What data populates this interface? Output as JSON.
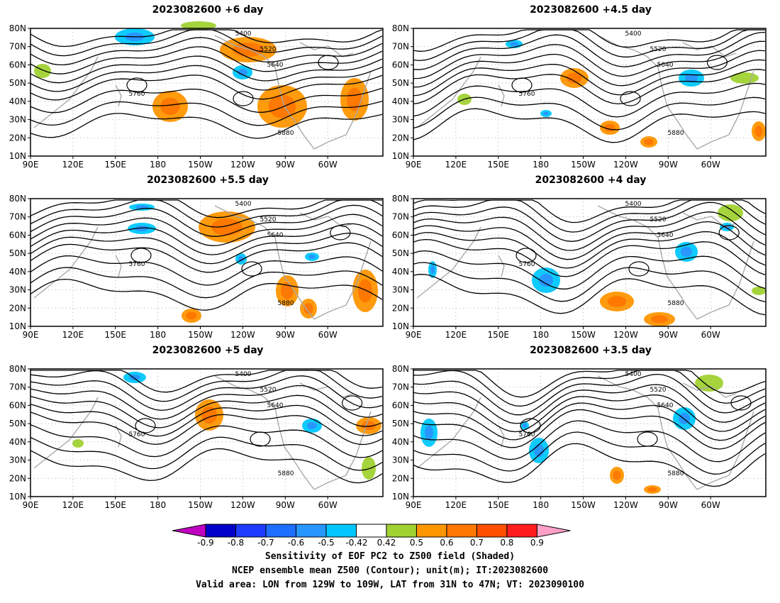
{
  "panels": [
    {
      "title": "2023082600 +6 day"
    },
    {
      "title": "2023082600 +4.5 day"
    },
    {
      "title": "2023082600 +5.5 day"
    },
    {
      "title": "2023082600 +4 day"
    },
    {
      "title": "2023082600 +5 day"
    },
    {
      "title": "2023082600 +3.5 day"
    }
  ],
  "axes": {
    "lat_labels": [
      "80N",
      "70N",
      "60N",
      "50N",
      "40N",
      "30N",
      "20N",
      "10N"
    ],
    "lon_labels": [
      "90E",
      "120E",
      "150E",
      "180",
      "150W",
      "120W",
      "90W",
      "60W"
    ]
  },
  "contour_labels": [
    "5400",
    "5520",
    "5640",
    "5760",
    "5880"
  ],
  "colorbar": {
    "levels": [
      "-0.9",
      "-0.8",
      "-0.7",
      "-0.6",
      "-0.5",
      "-0.42",
      "0.42",
      "0.5",
      "0.6",
      "0.7",
      "0.8",
      "0.9"
    ],
    "colors": [
      "#c000c0",
      "#0000c8",
      "#1e3cff",
      "#1e6eff",
      "#2896ff",
      "#00c8ff",
      "#ffffff",
      "#a0d232",
      "#ff9600",
      "#ff7800",
      "#ff5000",
      "#ff1e1e",
      "#ffa0c8"
    ]
  },
  "footer": {
    "line1": "Sensitivity of EOF PC2 to Z500 field (Shaded)",
    "line2": "NCEP ensemble mean Z500 (Contour); unit(m); IT:2023082600",
    "line3": "Valid area: LON from 129W to 109W, LAT from 31N to 47N; VT: 2023090100"
  },
  "map_colors": {
    "coast": "#a8a8a8",
    "contour": "#000000",
    "positive": [
      "#a0d232",
      "#ff9600",
      "#ff7800"
    ],
    "negative": [
      "#00c8ff",
      "#2896ff"
    ]
  }
}
